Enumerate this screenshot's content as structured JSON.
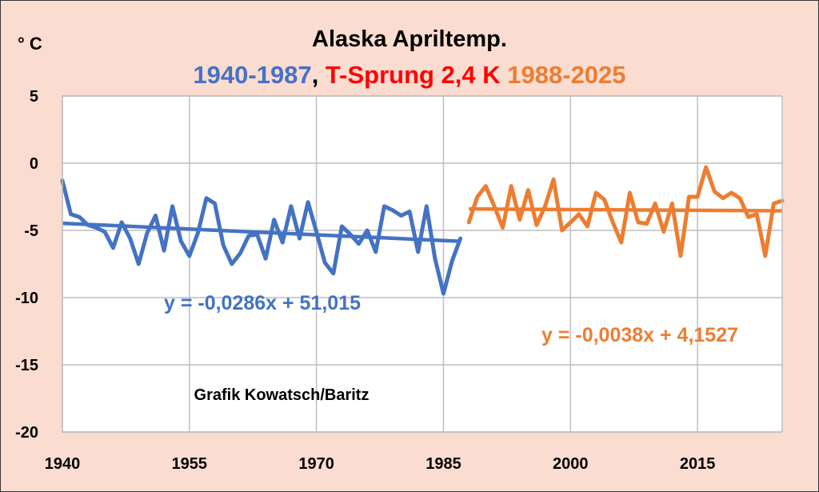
{
  "chart_data": {
    "type": "line",
    "title": "Alaska Apriltemp.",
    "subtitle": {
      "part1": "1940-1987",
      "sep": ", ",
      "part2": "T-Sprung 2,4 K",
      "part3": " 1988-2025"
    },
    "ylabel": "° C",
    "xlim": [
      1940,
      2025
    ],
    "ylim": [
      -20,
      5
    ],
    "xticks": [
      1940,
      1955,
      1970,
      1985,
      2000,
      2015
    ],
    "yticks": [
      5,
      0,
      -5,
      -10,
      -15,
      -20
    ],
    "grid": true,
    "series": [
      {
        "name": "1940-1987",
        "color": "#4472c4",
        "x": [
          1940,
          1941,
          1942,
          1943,
          1944,
          1945,
          1946,
          1947,
          1948,
          1949,
          1950,
          1951,
          1952,
          1953,
          1954,
          1955,
          1956,
          1957,
          1958,
          1959,
          1960,
          1961,
          1962,
          1963,
          1964,
          1965,
          1966,
          1967,
          1968,
          1969,
          1970,
          1971,
          1972,
          1973,
          1974,
          1975,
          1976,
          1977,
          1978,
          1979,
          1980,
          1981,
          1982,
          1983,
          1984,
          1985,
          1986,
          1987
        ],
        "y": [
          -1.3,
          -3.8,
          -4.0,
          -4.6,
          -4.8,
          -5.1,
          -6.3,
          -4.4,
          -5.6,
          -7.5,
          -5.2,
          -3.9,
          -6.5,
          -3.2,
          -5.8,
          -6.9,
          -5.2,
          -2.6,
          -3.0,
          -6.1,
          -7.5,
          -6.7,
          -5.4,
          -5.3,
          -7.1,
          -4.2,
          -5.9,
          -3.2,
          -5.6,
          -2.9,
          -5.1,
          -7.4,
          -8.2,
          -4.7,
          -5.3,
          -6.0,
          -5.0,
          -6.6,
          -3.2,
          -3.5,
          -3.9,
          -3.6,
          -6.6,
          -3.2,
          -7.1,
          -9.7,
          -7.3,
          -5.6
        ]
      },
      {
        "name": "1988-2025",
        "color": "#ed7d31",
        "x": [
          1988,
          1989,
          1990,
          1991,
          1992,
          1993,
          1994,
          1995,
          1996,
          1997,
          1998,
          1999,
          2000,
          2001,
          2002,
          2003,
          2004,
          2005,
          2006,
          2007,
          2008,
          2009,
          2010,
          2011,
          2012,
          2013,
          2014,
          2015,
          2016,
          2017,
          2018,
          2019,
          2020,
          2021,
          2022,
          2023,
          2024,
          2025
        ],
        "y": [
          -4.4,
          -2.5,
          -1.7,
          -3.2,
          -4.8,
          -1.7,
          -4.2,
          -2.0,
          -4.6,
          -3.2,
          -1.2,
          -5.0,
          -4.4,
          -3.8,
          -4.7,
          -2.2,
          -2.7,
          -4.4,
          -5.9,
          -2.2,
          -4.4,
          -4.5,
          -3.0,
          -5.1,
          -3.0,
          -6.9,
          -2.5,
          -2.5,
          -0.3,
          -2.1,
          -2.6,
          -2.2,
          -2.6,
          -4.0,
          -3.8,
          -6.9,
          -3.0,
          -2.8
        ]
      }
    ],
    "trendlines": [
      {
        "series": "1940-1987",
        "equation": "y = -0,0286x + 51,015",
        "slope": -0.0286,
        "intercept": 51.015,
        "x_range": [
          1940,
          1987
        ],
        "color": "#4472c4"
      },
      {
        "series": "1988-2025",
        "equation": "y = -0,0038x + 4,1527",
        "slope": -0.0038,
        "intercept": 4.1527,
        "x_range": [
          1988,
          2025
        ],
        "color": "#ed7d31"
      }
    ],
    "annotations": [
      "Grafik Kowatsch/Baritz"
    ]
  },
  "colors": {
    "background": "#fbdcd0",
    "plot_background": "#ffffff",
    "grid": "#bfbfbf",
    "title": "#000000",
    "blue": "#4472c4",
    "red": "#ff0000",
    "orange": "#ed7d31"
  }
}
